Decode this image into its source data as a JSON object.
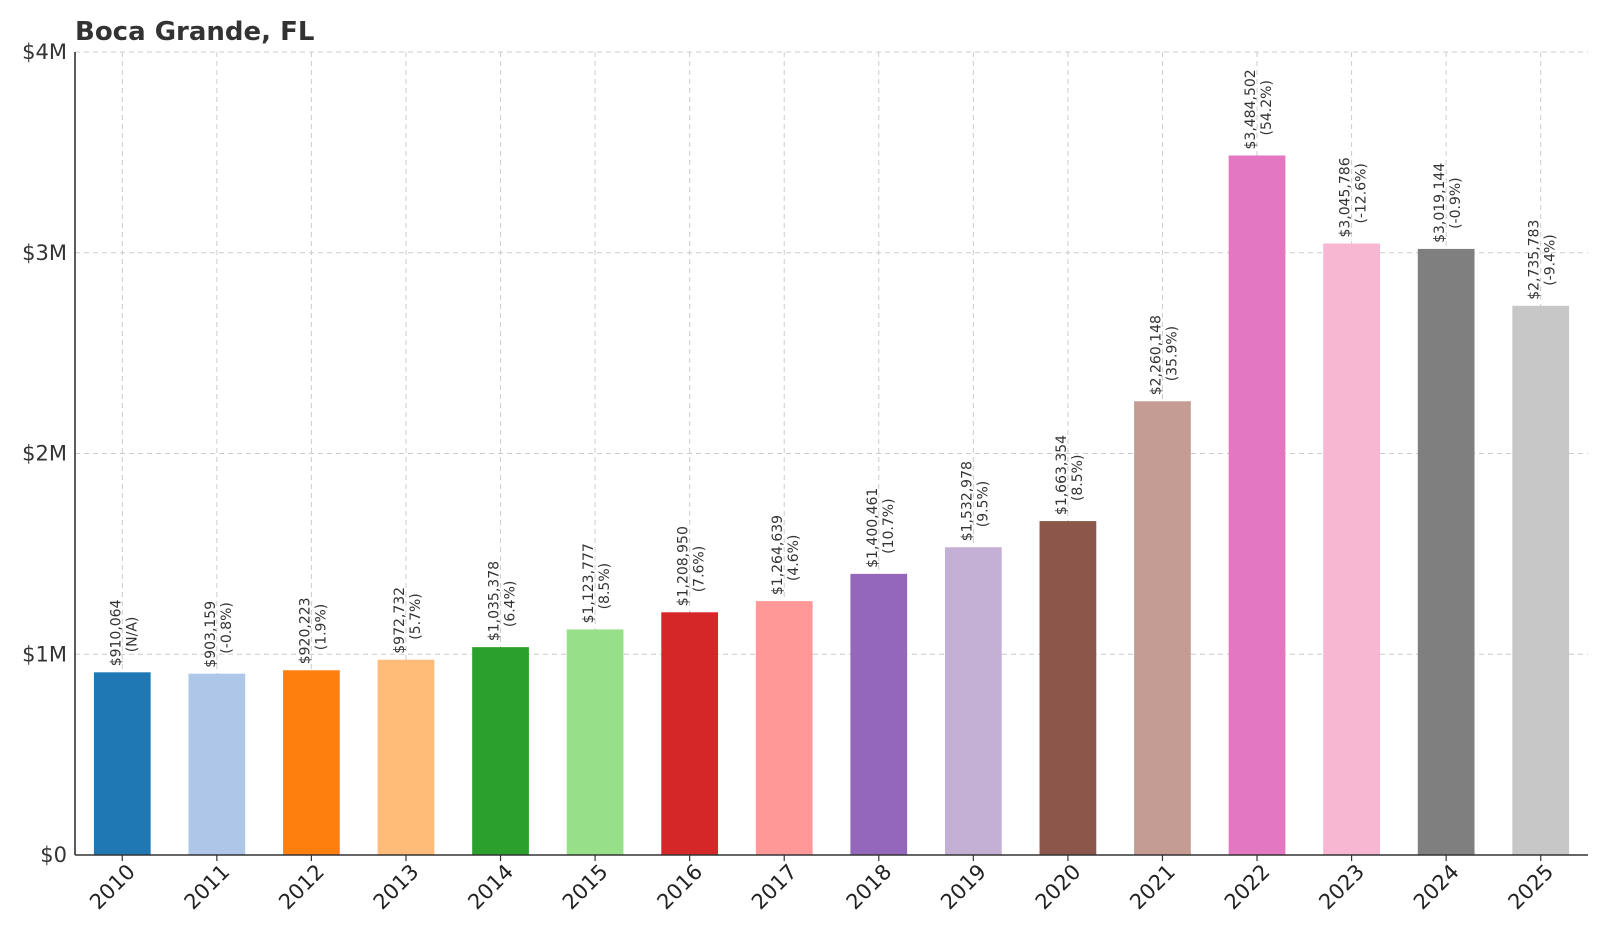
{
  "chart_data": {
    "type": "bar",
    "title": "Boca Grande, FL",
    "xlabel": "",
    "ylabel": "",
    "ylim": [
      0,
      4000000
    ],
    "yticks": [
      {
        "value": 0,
        "label": "$0"
      },
      {
        "value": 1000000,
        "label": "$1M"
      },
      {
        "value": 2000000,
        "label": "$2M"
      },
      {
        "value": 3000000,
        "label": "$3M"
      },
      {
        "value": 4000000,
        "label": "$4M"
      }
    ],
    "grid": true,
    "categories": [
      "2010",
      "2011",
      "2012",
      "2013",
      "2014",
      "2015",
      "2016",
      "2017",
      "2018",
      "2019",
      "2020",
      "2021",
      "2022",
      "2023",
      "2024",
      "2025"
    ],
    "values": [
      910064,
      903159,
      920223,
      972732,
      1035378,
      1123777,
      1208950,
      1264639,
      1400461,
      1532978,
      1663354,
      2260148,
      3484502,
      3045786,
      3019144,
      2735783
    ],
    "value_labels": [
      "$910,064",
      "$903,159",
      "$920,223",
      "$972,732",
      "$1,035,378",
      "$1,123,777",
      "$1,208,950",
      "$1,264,639",
      "$1,400,461",
      "$1,532,978",
      "$1,663,354",
      "$2,260,148",
      "$3,484,502",
      "$3,045,786",
      "$3,019,144",
      "$2,735,783"
    ],
    "change_labels": [
      "(N/A)",
      "(-0.8%)",
      "(1.9%)",
      "(5.7%)",
      "(6.4%)",
      "(8.5%)",
      "(7.6%)",
      "(4.6%)",
      "(10.7%)",
      "(9.5%)",
      "(8.5%)",
      "(35.9%)",
      "(54.2%)",
      "(-12.6%)",
      "(-0.9%)",
      "(-9.4%)"
    ],
    "colors": [
      "#1f77b4",
      "#aec7e8",
      "#ff7f0e",
      "#ffbb78",
      "#2ca02c",
      "#98df8a",
      "#d62728",
      "#ff9896",
      "#9467bd",
      "#c5b0d5",
      "#8c564b",
      "#c49c94",
      "#e377c2",
      "#f7b6d2",
      "#7f7f7f",
      "#c7c7c7"
    ]
  }
}
